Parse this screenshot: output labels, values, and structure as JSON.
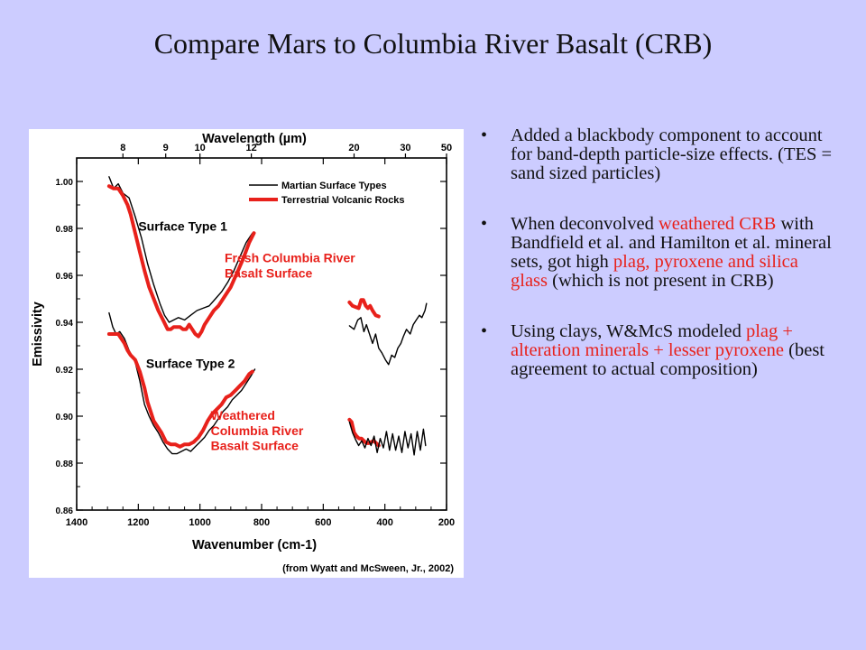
{
  "slide": {
    "title": "Compare Mars to Columbia River Basalt (CRB)"
  },
  "bullets": [
    {
      "parts": [
        {
          "text": "Added a blackbody component to account for band-depth particle-size effects. (TES = sand sized particles)",
          "color": "black"
        }
      ]
    },
    {
      "parts": [
        {
          "text": "When deconvolved ",
          "color": "black"
        },
        {
          "text": "weathered CRB",
          "color": "red"
        },
        {
          "text": " with Bandfield et al. and Hamilton et al. mineral sets, got high ",
          "color": "black"
        },
        {
          "text": "plag, pyroxene and silica glass",
          "color": "red"
        },
        {
          "text": " (which is not present in CRB)",
          "color": "black"
        }
      ]
    },
    {
      "parts": [
        {
          "text": "Using clays, W&McS modeled ",
          "color": "black"
        },
        {
          "text": "plag + alteration minerals + lesser pyroxene",
          "color": "red"
        },
        {
          "text": " (best agreement to actual composition)",
          "color": "black"
        }
      ]
    }
  ],
  "colors": {
    "background": "#ccccff",
    "mars_series": "#000000",
    "terrestrial_series": "#e8211b",
    "annotation_red": "#e8211b"
  },
  "chart_data": {
    "type": "line",
    "x_axis": {
      "label": "Wavenumber (cm-1)",
      "range": [
        1400,
        200
      ],
      "ticks": [
        1400,
        1200,
        1000,
        800,
        600,
        400,
        200
      ]
    },
    "x2_axis": {
      "label": "Wavelength (µm)",
      "tick_labels": [
        "8",
        "9",
        "10",
        "12",
        "20",
        "30",
        "50"
      ],
      "tick_wavelengths_um": [
        8,
        9,
        10,
        12,
        20,
        30,
        50
      ]
    },
    "y_axis": {
      "label": "Emissivity",
      "range": [
        0.86,
        1.01
      ],
      "ticks": [
        0.86,
        0.88,
        0.9,
        0.92,
        0.94,
        0.96,
        0.98,
        1.0
      ],
      "tick_labels": [
        "0.86",
        "0.88",
        "0.90",
        "0.92",
        "0.94",
        "0.96",
        "0.98",
        "1.00"
      ]
    },
    "legend": {
      "placement": "top-right",
      "entries": [
        {
          "label": "Martian Surface Types",
          "series": "mars"
        },
        {
          "label": "Terrestrial Volcanic Rocks",
          "series": "terrestrial"
        }
      ]
    },
    "annotations": [
      {
        "text": "Surface Type 1",
        "color": "black",
        "x": 1200,
        "y": 0.979
      },
      {
        "text": "Fresh Columbia River",
        "color": "red",
        "x": 920,
        "y": 0.9655
      },
      {
        "text": "Basalt Surface",
        "color": "red",
        "x": 920,
        "y": 0.959
      },
      {
        "text": "Surface Type 2",
        "color": "black",
        "x": 1175,
        "y": 0.9205
      },
      {
        "text": "Weathered",
        "color": "red",
        "x": 965,
        "y": 0.8985
      },
      {
        "text": "Columbia River",
        "color": "red",
        "x": 965,
        "y": 0.892
      },
      {
        "text": "Basalt Surface",
        "color": "red",
        "x": 965,
        "y": 0.8855
      }
    ],
    "series": [
      {
        "id": "mars-type1-hi",
        "kind": "mars",
        "points": [
          [
            1295,
            1.002
          ],
          [
            1280,
            0.997
          ],
          [
            1265,
            0.999
          ],
          [
            1250,
            0.995
          ],
          [
            1230,
            0.993
          ],
          [
            1210,
            0.985
          ],
          [
            1190,
            0.976
          ],
          [
            1170,
            0.965
          ],
          [
            1150,
            0.956
          ],
          [
            1130,
            0.948
          ],
          [
            1115,
            0.943
          ],
          [
            1100,
            0.94
          ],
          [
            1085,
            0.941
          ],
          [
            1070,
            0.942
          ],
          [
            1050,
            0.941
          ],
          [
            1030,
            0.943
          ],
          [
            1010,
            0.945
          ],
          [
            990,
            0.946
          ],
          [
            970,
            0.947
          ],
          [
            950,
            0.95
          ],
          [
            930,
            0.953
          ],
          [
            910,
            0.957
          ],
          [
            890,
            0.962
          ],
          [
            870,
            0.968
          ],
          [
            850,
            0.974
          ],
          [
            830,
            0.978
          ]
        ]
      },
      {
        "id": "crb-fresh-hi",
        "kind": "terrestrial",
        "points": [
          [
            1295,
            0.998
          ],
          [
            1280,
            0.997
          ],
          [
            1265,
            0.997
          ],
          [
            1250,
            0.994
          ],
          [
            1235,
            0.99
          ],
          [
            1225,
            0.986
          ],
          [
            1210,
            0.978
          ],
          [
            1195,
            0.97
          ],
          [
            1180,
            0.962
          ],
          [
            1165,
            0.955
          ],
          [
            1150,
            0.95
          ],
          [
            1135,
            0.945
          ],
          [
            1120,
            0.941
          ],
          [
            1105,
            0.937
          ],
          [
            1095,
            0.937
          ],
          [
            1085,
            0.938
          ],
          [
            1075,
            0.938
          ],
          [
            1065,
            0.938
          ],
          [
            1055,
            0.937
          ],
          [
            1045,
            0.937
          ],
          [
            1035,
            0.939
          ],
          [
            1025,
            0.937
          ],
          [
            1015,
            0.935
          ],
          [
            1005,
            0.934
          ],
          [
            995,
            0.936
          ],
          [
            985,
            0.939
          ],
          [
            970,
            0.942
          ],
          [
            955,
            0.945
          ],
          [
            940,
            0.947
          ],
          [
            920,
            0.951
          ],
          [
            900,
            0.955
          ],
          [
            880,
            0.961
          ],
          [
            860,
            0.967
          ],
          [
            840,
            0.974
          ],
          [
            825,
            0.978
          ]
        ]
      },
      {
        "id": "crb-fresh-lo",
        "kind": "terrestrial",
        "points": [
          [
            515,
            0.9485
          ],
          [
            505,
            0.947
          ],
          [
            495,
            0.9465
          ],
          [
            485,
            0.946
          ],
          [
            477,
            0.9495
          ],
          [
            470,
            0.9495
          ],
          [
            462,
            0.947
          ],
          [
            455,
            0.946
          ],
          [
            448,
            0.947
          ],
          [
            440,
            0.945
          ],
          [
            430,
            0.943
          ],
          [
            420,
            0.9425
          ]
        ]
      },
      {
        "id": "mars-type1-lo",
        "kind": "mars",
        "points": [
          [
            515,
            0.9385
          ],
          [
            500,
            0.937
          ],
          [
            488,
            0.941
          ],
          [
            478,
            0.942
          ],
          [
            468,
            0.936
          ],
          [
            460,
            0.939
          ],
          [
            450,
            0.935
          ],
          [
            440,
            0.931
          ],
          [
            430,
            0.935
          ],
          [
            420,
            0.929
          ],
          [
            410,
            0.927
          ],
          [
            398,
            0.924
          ],
          [
            388,
            0.922
          ],
          [
            378,
            0.926
          ],
          [
            368,
            0.925
          ],
          [
            358,
            0.929
          ],
          [
            348,
            0.931
          ],
          [
            340,
            0.934
          ],
          [
            330,
            0.937
          ],
          [
            318,
            0.935
          ],
          [
            308,
            0.939
          ],
          [
            298,
            0.941
          ],
          [
            288,
            0.943
          ],
          [
            280,
            0.942
          ],
          [
            270,
            0.945
          ],
          [
            265,
            0.948
          ]
        ]
      },
      {
        "id": "mars-type2-hi",
        "kind": "mars",
        "points": [
          [
            1295,
            0.944
          ],
          [
            1283,
            0.938
          ],
          [
            1272,
            0.935
          ],
          [
            1260,
            0.936
          ],
          [
            1245,
            0.933
          ],
          [
            1230,
            0.928
          ],
          [
            1210,
            0.923
          ],
          [
            1195,
            0.915
          ],
          [
            1180,
            0.905
          ],
          [
            1165,
            0.9
          ],
          [
            1150,
            0.896
          ],
          [
            1135,
            0.893
          ],
          [
            1120,
            0.889
          ],
          [
            1105,
            0.886
          ],
          [
            1090,
            0.884
          ],
          [
            1075,
            0.884
          ],
          [
            1060,
            0.885
          ],
          [
            1045,
            0.886
          ],
          [
            1030,
            0.885
          ],
          [
            1015,
            0.887
          ],
          [
            1000,
            0.889
          ],
          [
            985,
            0.891
          ],
          [
            970,
            0.894
          ],
          [
            955,
            0.896
          ],
          [
            940,
            0.899
          ],
          [
            925,
            0.902
          ],
          [
            910,
            0.904
          ],
          [
            895,
            0.907
          ],
          [
            880,
            0.909
          ],
          [
            865,
            0.911
          ],
          [
            850,
            0.914
          ],
          [
            835,
            0.917
          ],
          [
            822,
            0.92
          ]
        ]
      },
      {
        "id": "crb-weathered-hi",
        "kind": "terrestrial",
        "points": [
          [
            1295,
            0.935
          ],
          [
            1280,
            0.935
          ],
          [
            1265,
            0.935
          ],
          [
            1255,
            0.933
          ],
          [
            1245,
            0.931
          ],
          [
            1235,
            0.928
          ],
          [
            1225,
            0.926
          ],
          [
            1210,
            0.924
          ],
          [
            1195,
            0.919
          ],
          [
            1180,
            0.912
          ],
          [
            1170,
            0.906
          ],
          [
            1160,
            0.902
          ],
          [
            1150,
            0.898
          ],
          [
            1140,
            0.896
          ],
          [
            1125,
            0.893
          ],
          [
            1110,
            0.889
          ],
          [
            1095,
            0.888
          ],
          [
            1080,
            0.888
          ],
          [
            1065,
            0.887
          ],
          [
            1050,
            0.888
          ],
          [
            1035,
            0.888
          ],
          [
            1020,
            0.889
          ],
          [
            1005,
            0.891
          ],
          [
            990,
            0.894
          ],
          [
            975,
            0.898
          ],
          [
            960,
            0.901
          ],
          [
            945,
            0.903
          ],
          [
            930,
            0.905
          ],
          [
            915,
            0.908
          ],
          [
            900,
            0.909
          ],
          [
            885,
            0.911
          ],
          [
            870,
            0.913
          ],
          [
            855,
            0.915
          ],
          [
            840,
            0.918
          ],
          [
            830,
            0.919
          ]
        ]
      },
      {
        "id": "crb-weathered-lo",
        "kind": "terrestrial",
        "points": [
          [
            515,
            0.8985
          ],
          [
            508,
            0.8975
          ],
          [
            500,
            0.893
          ],
          [
            492,
            0.8915
          ],
          [
            484,
            0.8905
          ],
          [
            476,
            0.8905
          ],
          [
            468,
            0.8895
          ],
          [
            460,
            0.8885
          ],
          [
            452,
            0.8885
          ],
          [
            444,
            0.889
          ],
          [
            436,
            0.8895
          ],
          [
            428,
            0.8885
          ],
          [
            420,
            0.8875
          ]
        ]
      },
      {
        "id": "mars-type2-lo",
        "kind": "mars",
        "points": [
          [
            515,
            0.8975
          ],
          [
            505,
            0.893
          ],
          [
            495,
            0.89
          ],
          [
            485,
            0.8875
          ],
          [
            475,
            0.8895
          ],
          [
            465,
            0.8865
          ],
          [
            455,
            0.8905
          ],
          [
            445,
            0.8875
          ],
          [
            435,
            0.8915
          ],
          [
            425,
            0.8845
          ],
          [
            415,
            0.8905
          ],
          [
            405,
            0.8865
          ],
          [
            395,
            0.8935
          ],
          [
            385,
            0.8855
          ],
          [
            375,
            0.8925
          ],
          [
            365,
            0.8855
          ],
          [
            355,
            0.8915
          ],
          [
            345,
            0.8845
          ],
          [
            335,
            0.8935
          ],
          [
            325,
            0.8865
          ],
          [
            315,
            0.8925
          ],
          [
            305,
            0.8835
          ],
          [
            295,
            0.8935
          ],
          [
            285,
            0.8855
          ],
          [
            275,
            0.8945
          ],
          [
            268,
            0.8875
          ]
        ]
      }
    ],
    "credit": "(from Wyatt and McSween, Jr., 2002)"
  }
}
